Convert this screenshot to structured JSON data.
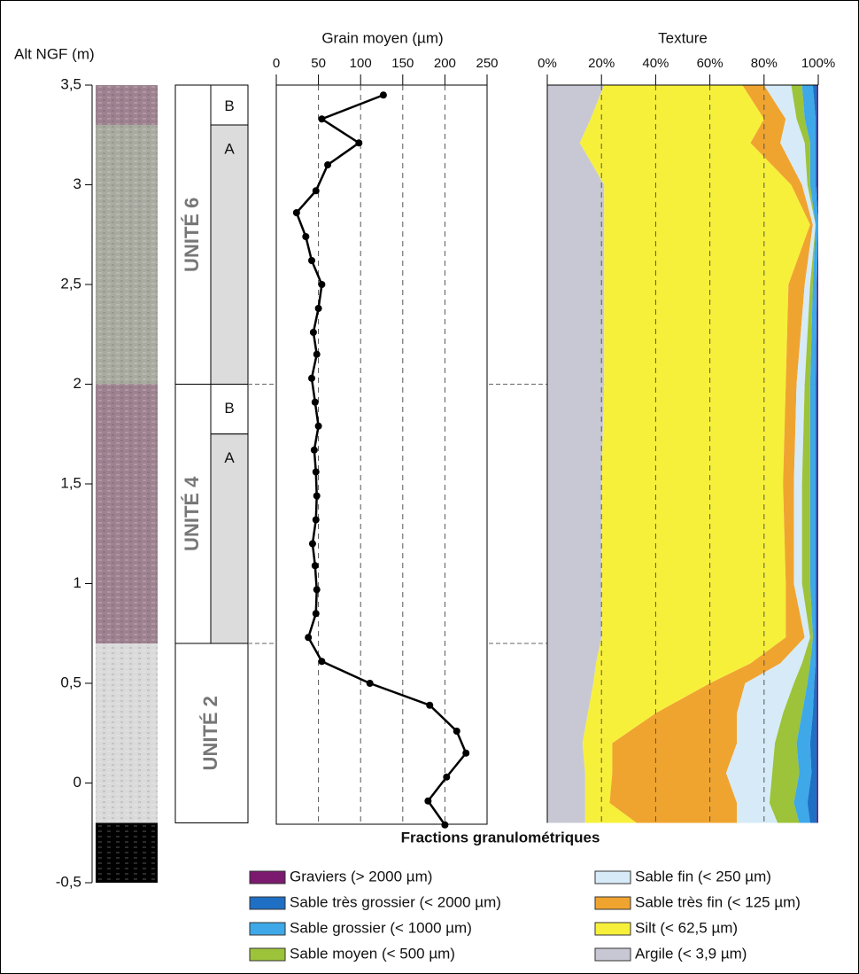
{
  "chart_data": [
    {
      "type": "column",
      "axis_label": "Alt NGF (m)",
      "ylim": [
        -0.5,
        3.5
      ],
      "yticks": [
        {
          "value": -0.5,
          "label": "-0,5"
        },
        0,
        {
          "value": 0.5,
          "label": "0,5"
        },
        1,
        {
          "value": 1.5,
          "label": "1,5"
        },
        2,
        {
          "value": 2.5,
          "label": "2,5"
        },
        3,
        {
          "value": 3.5,
          "label": "3,5"
        }
      ],
      "layers": [
        {
          "top": 3.5,
          "bottom": 3.3,
          "color": "#9e8290"
        },
        {
          "top": 3.3,
          "bottom": 2.0,
          "color": "#a9aaa0"
        },
        {
          "top": 2.0,
          "bottom": 0.7,
          "color": "#9e8290"
        },
        {
          "top": 0.7,
          "bottom": -0.2,
          "color": "#dadada"
        },
        {
          "top": -0.2,
          "bottom": -0.5,
          "color": "#000000"
        }
      ],
      "units": [
        {
          "label": "UNITÉ 6",
          "top": 3.5,
          "bottom": 2.0,
          "subunits": [
            {
              "label": "B",
              "top": 3.5,
              "bottom": 3.3
            },
            {
              "label": "A",
              "top": 3.3,
              "bottom": 2.0
            }
          ]
        },
        {
          "label": "UNITÉ 4",
          "top": 2.0,
          "bottom": 0.7,
          "subunits": [
            {
              "label": "B",
              "top": 2.0,
              "bottom": 1.75
            },
            {
              "label": "A",
              "top": 1.75,
              "bottom": 0.7
            }
          ]
        },
        {
          "label": "UNITÉ 2",
          "top": 0.7,
          "bottom": -0.2,
          "subunits": []
        }
      ]
    },
    {
      "type": "line",
      "title": "Grain moyen (µm)",
      "xlim": [
        0,
        250
      ],
      "xticks": [
        0,
        50,
        100,
        150,
        200,
        250
      ],
      "grid": true,
      "color": "#000000",
      "alt": [
        3.45,
        3.33,
        3.21,
        3.1,
        2.97,
        2.86,
        2.74,
        2.62,
        2.5,
        2.38,
        2.26,
        2.15,
        2.03,
        1.91,
        1.79,
        1.67,
        1.56,
        1.44,
        1.32,
        1.2,
        1.09,
        0.97,
        0.85,
        0.73,
        0.61,
        0.5,
        0.39,
        0.26,
        0.15,
        0.03,
        -0.09,
        -0.21
      ],
      "values": [
        127,
        54,
        98,
        61,
        47,
        24,
        35,
        42,
        54,
        50,
        44,
        48,
        42,
        46,
        50,
        45,
        47,
        48,
        47,
        43,
        46,
        48,
        47,
        38,
        54,
        111,
        182,
        214,
        225,
        202,
        180,
        200
      ]
    },
    {
      "type": "area",
      "title": "Texture",
      "legend_title": "Fractions granulométriques",
      "xlim": [
        0,
        100
      ],
      "xticks": [
        {
          "value": 0,
          "label": "0%"
        },
        {
          "value": 20,
          "label": "20%"
        },
        {
          "value": 40,
          "label": "40%"
        },
        {
          "value": 60,
          "label": "60%"
        },
        {
          "value": 80,
          "label": "80%"
        },
        {
          "value": 100,
          "label": "100%"
        }
      ],
      "grid": true,
      "alt": [
        3.5,
        3.33,
        3.21,
        3.0,
        2.8,
        2.5,
        2.0,
        1.5,
        1.0,
        0.73,
        0.6,
        0.5,
        0.35,
        0.2,
        0.05,
        -0.1,
        -0.2
      ],
      "series": [
        {
          "name": "Graviers (> 2000 µm)",
          "color": "#7b1a6e",
          "values": [
            0.5,
            0.5,
            0.5,
            0.5,
            0,
            0.5,
            0.5,
            0.5,
            0.5,
            0.5,
            0.5,
            0.5,
            0.5,
            0.5,
            0.5,
            0.5,
            0.5
          ]
        },
        {
          "name": "Sable très grossier (< 2000 µm)",
          "color": "#1f6fc5",
          "values": [
            1.5,
            0.5,
            0.5,
            0.5,
            0,
            0,
            0.5,
            0.5,
            0.5,
            0.5,
            0.5,
            1,
            1.5,
            2.5,
            2,
            3.5,
            2.5
          ]
        },
        {
          "name": "Sable grossier (< 1000 µm)",
          "color": "#3ea8e8",
          "values": [
            4,
            4,
            2,
            2,
            1,
            1.5,
            2,
            2,
            2,
            1,
            2,
            2.5,
            4,
            5,
            4.5,
            5,
            4
          ]
        },
        {
          "name": "Sable moyen (< 500 µm)",
          "color": "#9cc33a",
          "values": [
            4,
            3,
            2,
            1,
            0,
            1,
            2,
            3,
            3,
            1,
            3,
            5,
            7,
            8,
            10,
            9,
            8
          ]
        },
        {
          "name": "Sable fin (< 250 µm)",
          "color": "#d6ebf7",
          "values": [
            10,
            4,
            9,
            2,
            1,
            2,
            3,
            3,
            3,
            2,
            8,
            18,
            17,
            14,
            17,
            12,
            15
          ]
        },
        {
          "name": "Sable très fin (< 125 µm)",
          "color": "#f0a430",
          "values": [
            8,
            8,
            11,
            4,
            1,
            6,
            4,
            4,
            3,
            7,
            11,
            13,
            30,
            46,
            42,
            47,
            37
          ]
        },
        {
          "name": "Silt (< 62,5 µm)",
          "color": "#f7f03a",
          "values": [
            51,
            64,
            63,
            69,
            76,
            68,
            67,
            67,
            68,
            68,
            57,
            43,
            25,
            11,
            10,
            9,
            19
          ]
        },
        {
          "name": "Argile (< 3,9 µm)",
          "color": "#c8c8d4",
          "values": [
            21,
            16,
            12,
            21,
            21,
            21,
            21,
            20,
            20,
            20,
            18,
            17,
            15,
            13,
            14,
            14,
            14
          ]
        }
      ]
    }
  ]
}
